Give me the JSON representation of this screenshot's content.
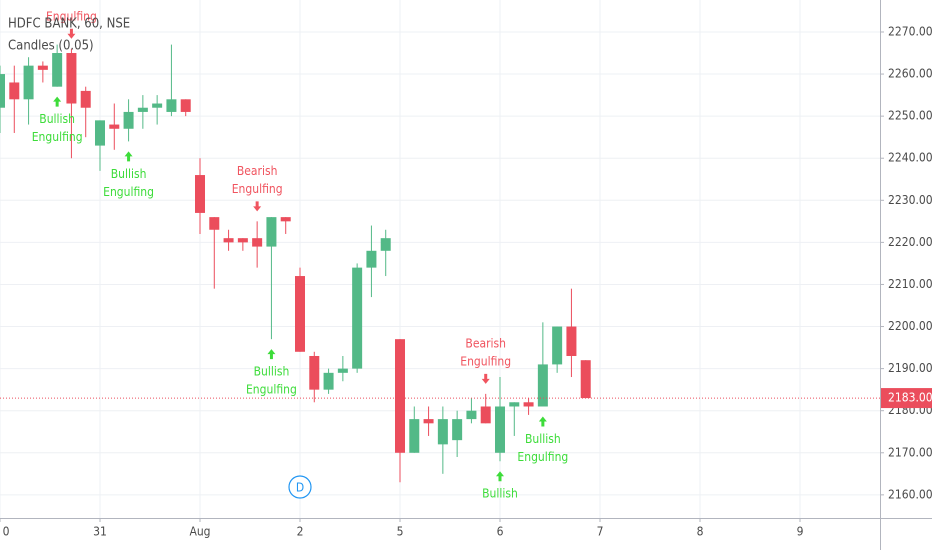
{
  "chart_data": {
    "type": "candlestick",
    "title": "HDFC BANK, 60, NSE",
    "subtitle": "Candles (0.05)",
    "up_color": "#53b987",
    "down_color": "#eb4d5c",
    "grid": true,
    "x": [
      0,
      1,
      2,
      3,
      4,
      5,
      6,
      7,
      8,
      9,
      10,
      11,
      12,
      13,
      14,
      15,
      16,
      17,
      18,
      19,
      20,
      21,
      22,
      23,
      24,
      25,
      26,
      27,
      28,
      29,
      30,
      31,
      32,
      33,
      34,
      35,
      36,
      37,
      38,
      39,
      40,
      41
    ],
    "open": [
      2252,
      2258,
      2254,
      2262,
      2257,
      2265,
      2256,
      2243,
      2248,
      2247,
      2251,
      2252,
      2251,
      2254,
      2236,
      2226,
      2221,
      2221,
      2221,
      2219,
      2226,
      2212,
      2193,
      2185,
      2189,
      2190,
      2214,
      2218,
      2197,
      2170,
      2178,
      2172,
      2173,
      2178,
      2181,
      2170,
      2181,
      2182,
      2181,
      2191,
      2200,
      2192
    ],
    "high": [
      2262,
      2262,
      2264,
      2263,
      2267,
      2266,
      2257,
      2249,
      2253,
      2254,
      2255,
      2255,
      2267,
      2254,
      2240,
      2226,
      2223,
      2221,
      2225,
      2226,
      2226,
      2214,
      2194,
      2190,
      2193,
      2215,
      2224,
      2223,
      2197,
      2181,
      2181,
      2181,
      2180,
      2183,
      2184,
      2188,
      2182,
      2183,
      2201,
      2200,
      2209,
      2192
    ],
    "low": [
      2246,
      2246,
      2248,
      2258,
      2257,
      2240,
      2245,
      2237,
      2242,
      2244,
      2247,
      2248,
      2250,
      2250,
      2222,
      2209,
      2218,
      2218,
      2214,
      2197,
      2222,
      2194,
      2182,
      2184,
      2187,
      2189,
      2207,
      2212,
      2163,
      2170,
      2174,
      2165,
      2169,
      2177,
      2177,
      2168,
      2174,
      2179,
      2181,
      2189,
      2188,
      2183
    ],
    "close": [
      2260,
      2254,
      2262,
      2261,
      2265,
      2253,
      2252,
      2249,
      2247,
      2251,
      2252,
      2253,
      2254,
      2251,
      2227,
      2223,
      2220,
      2220,
      2219,
      2226,
      2225,
      2194,
      2185,
      2189,
      2190,
      2214,
      2218,
      2221,
      2170,
      2178,
      2177,
      2178,
      2178,
      2180,
      2177,
      2181,
      2182,
      2181,
      2191,
      2200,
      2193,
      2183
    ],
    "xlim": [
      0,
      61.6
    ],
    "ylim": [
      2154.5,
      2277.6
    ],
    "xticks": [
      {
        "value": 0,
        "label": "0"
      },
      {
        "value": 7,
        "label": "31"
      },
      {
        "value": 14,
        "label": "Aug"
      },
      {
        "value": 21,
        "label": "2"
      },
      {
        "value": 28,
        "label": "5"
      },
      {
        "value": 35,
        "label": "6"
      },
      {
        "value": 42,
        "label": "7"
      },
      {
        "value": 49,
        "label": "8"
      },
      {
        "value": 56,
        "label": "9"
      }
    ],
    "yticks": [
      {
        "value": 2160,
        "label": "2160.00"
      },
      {
        "value": 2170,
        "label": "2170.00"
      },
      {
        "value": 2180,
        "label": "2180.00"
      },
      {
        "value": 2190,
        "label": "2190.00"
      },
      {
        "value": 2200,
        "label": "2200.00"
      },
      {
        "value": 2210,
        "label": "2210.00"
      },
      {
        "value": 2220,
        "label": "2220.00"
      },
      {
        "value": 2230,
        "label": "2230.00"
      },
      {
        "value": 2240,
        "label": "2240.00"
      },
      {
        "value": 2250,
        "label": "2250.00"
      },
      {
        "value": 2260,
        "label": "2260.00"
      },
      {
        "value": 2270,
        "label": "2270.00"
      }
    ],
    "last_price": {
      "value": 2183,
      "label": "2183.00"
    },
    "session_marker": "D",
    "annotations": [
      {
        "x": 5,
        "side": "bearish",
        "lines": [
          "Engulfing"
        ]
      },
      {
        "x": 4,
        "side": "bullish",
        "lines": [
          "Bullish",
          "Engulfing"
        ]
      },
      {
        "x": 9,
        "side": "bullish",
        "lines": [
          "Bullish",
          "Engulfing"
        ]
      },
      {
        "x": 18,
        "side": "bearish",
        "lines": [
          "Bearish",
          "Engulfing"
        ]
      },
      {
        "x": 19,
        "side": "bullish",
        "lines": [
          "Bullish",
          "Engulfing"
        ]
      },
      {
        "x": 34,
        "side": "bearish",
        "lines": [
          "Bearish",
          "Engulfing"
        ]
      },
      {
        "x": 35,
        "side": "bullish",
        "lines": [
          "Bullish"
        ]
      },
      {
        "x": 38,
        "side": "bullish",
        "lines": [
          "Bullish",
          "Engulfing"
        ]
      }
    ]
  }
}
